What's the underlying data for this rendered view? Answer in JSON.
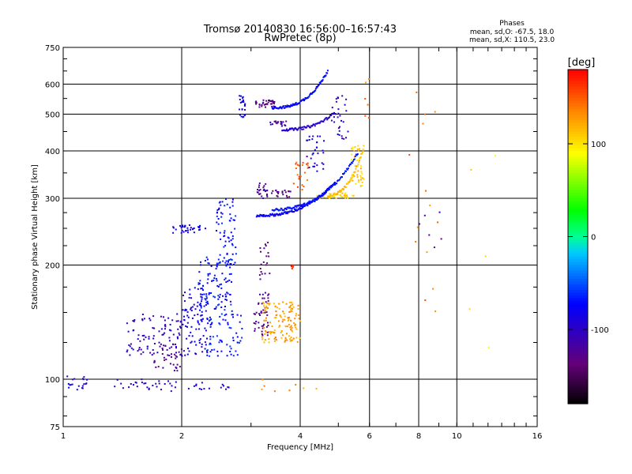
{
  "chart_data": {
    "type": "scatter",
    "title": "Tromsø 20140830 16:56:00–16:57:43",
    "subtitle": "RwPretec (8p)",
    "xlabel": "Frequency [MHz]",
    "ylabel": "Stationary phase Virtual Height [km]",
    "x_scale": "log",
    "y_scale": "log",
    "xlim": [
      1,
      16
    ],
    "ylim": [
      75,
      750
    ],
    "x_ticks": [
      1,
      2,
      4,
      6,
      8,
      10,
      16
    ],
    "x_tick_labels": [
      "1",
      "2",
      "4",
      "6",
      "8",
      "10",
      "16"
    ],
    "y_ticks": [
      75,
      100,
      200,
      300,
      400,
      500,
      600,
      750
    ],
    "y_tick_labels": [
      "75",
      "100",
      "200",
      "300",
      "400",
      "500",
      "600",
      "750"
    ],
    "grid": true,
    "stats": {
      "title": "Phases",
      "line_o": "mean, sd,O: -67.5, 18.0",
      "line_x": "mean, sd,X: 110.5, 23.0"
    },
    "colorbar": {
      "label": "[deg]",
      "range": [
        -180,
        180
      ],
      "ticks": [
        100,
        0,
        -100
      ],
      "tick_labels": [
        "100",
        "0",
        "-100"
      ]
    },
    "clusters": [
      {
        "freq": [
          1.0,
          1.15
        ],
        "height": [
          93,
          103
        ],
        "phase": -90,
        "n": 20
      },
      {
        "freq": [
          1.35,
          1.65
        ],
        "height": [
          94,
          100
        ],
        "phase": -95,
        "n": 15
      },
      {
        "freq": [
          1.65,
          2.0
        ],
        "height": [
          92,
          100
        ],
        "phase": -105,
        "n": 15
      },
      {
        "freq": [
          2.0,
          2.8
        ],
        "height": [
          94,
          98
        ],
        "phase": -90,
        "n": 15
      },
      {
        "freq": [
          1.45,
          2.0
        ],
        "height": [
          115,
          150
        ],
        "phase": -105,
        "n": 90
      },
      {
        "freq": [
          1.7,
          2.0
        ],
        "height": [
          105,
          125
        ],
        "phase": -120,
        "n": 40
      },
      {
        "freq": [
          2.0,
          2.35
        ],
        "height": [
          115,
          175
        ],
        "phase": -85,
        "n": 90
      },
      {
        "freq": [
          2.2,
          2.7
        ],
        "height": [
          140,
          210
        ],
        "phase": -70,
        "n": 110
      },
      {
        "freq": [
          2.45,
          2.75
        ],
        "height": [
          200,
          300
        ],
        "phase": -70,
        "n": 70
      },
      {
        "freq": [
          1.9,
          2.3
        ],
        "height": [
          243,
          255
        ],
        "phase": -85,
        "n": 35
      },
      {
        "freq": [
          2.3,
          2.85
        ],
        "height": [
          115,
          150
        ],
        "phase": -65,
        "n": 60
      },
      {
        "freq": [
          2.8,
          2.9
        ],
        "height": [
          490,
          560
        ],
        "phase": -80,
        "n": 25
      },
      {
        "freq": [
          3.05,
          3.35
        ],
        "height": [
          130,
          170
        ],
        "phase": -125,
        "n": 45
      },
      {
        "freq": [
          3.15,
          3.35
        ],
        "height": [
          180,
          230
        ],
        "phase": -130,
        "n": 20
      },
      {
        "freq": [
          3.2,
          4.0
        ],
        "height": [
          125,
          160
        ],
        "phase": 125,
        "n": 130
      },
      {
        "freq": [
          3.8,
          3.85
        ],
        "height": [
          195,
          200
        ],
        "phase": 170,
        "n": 8
      },
      {
        "freq": [
          3.1,
          3.3
        ],
        "height": [
          300,
          330
        ],
        "phase": -125,
        "n": 25
      },
      {
        "freq": [
          3.35,
          3.8
        ],
        "height": [
          300,
          315
        ],
        "phase": -130,
        "n": 20
      },
      {
        "freq": [
          3.05,
          3.45
        ],
        "height": [
          520,
          545
        ],
        "phase": -130,
        "n": 35
      },
      {
        "freq": [
          3.35,
          3.7
        ],
        "height": [
          465,
          480
        ],
        "phase": -120,
        "n": 20
      },
      {
        "freq": [
          3.85,
          4.2
        ],
        "height": [
          315,
          375
        ],
        "phase": 150,
        "n": 22
      },
      {
        "freq": [
          4.1,
          4.6
        ],
        "height": [
          350,
          440
        ],
        "phase": -90,
        "n": 30
      },
      {
        "freq": [
          4.8,
          5.3
        ],
        "height": [
          430,
          560
        ],
        "phase": -100,
        "n": 30
      },
      {
        "freq": [
          4.4,
          5.5
        ],
        "height": [
          300,
          310
        ],
        "phase": 105,
        "n": 35
      },
      {
        "freq": [
          5.4,
          5.8
        ],
        "height": [
          320,
          415
        ],
        "phase": 110,
        "n": 40
      },
      {
        "freq": [
          3.0,
          4.6
        ],
        "height": [
          92,
          100
        ],
        "phase": 130,
        "n": 8
      },
      {
        "freq": [
          5.8,
          6.1
        ],
        "height": [
          470,
          650
        ],
        "phase": 140,
        "n": 6
      },
      {
        "freq": [
          7.5,
          9.8
        ],
        "height": [
          150,
          600
        ],
        "phase": 140,
        "n": 14
      },
      {
        "freq": [
          8.0,
          9.2
        ],
        "height": [
          200,
          300
        ],
        "phase": -120,
        "n": 6
      },
      {
        "freq": [
          10.5,
          12.8
        ],
        "height": [
          90,
          390
        ],
        "phase": 100,
        "n": 5
      }
    ],
    "traces": [
      {
        "f0": 3.1,
        "h0": 270,
        "f1": 4.9,
        "h1": 330,
        "k": 0.5,
        "phase": -80,
        "n": 110
      },
      {
        "f0": 3.4,
        "h0": 280,
        "f1": 5.6,
        "h1": 395,
        "k": 0.55,
        "phase": -68,
        "n": 110
      },
      {
        "f0": 3.4,
        "h0": 520,
        "f1": 4.7,
        "h1": 650,
        "k": 0.45,
        "phase": -72,
        "n": 90
      },
      {
        "f0": 3.6,
        "h0": 455,
        "f1": 4.9,
        "h1": 505,
        "k": 0.5,
        "phase": -95,
        "n": 70
      },
      {
        "f0": 4.7,
        "h0": 305,
        "f1": 5.8,
        "h1": 410,
        "k": 0.6,
        "phase": 115,
        "n": 60
      }
    ]
  }
}
